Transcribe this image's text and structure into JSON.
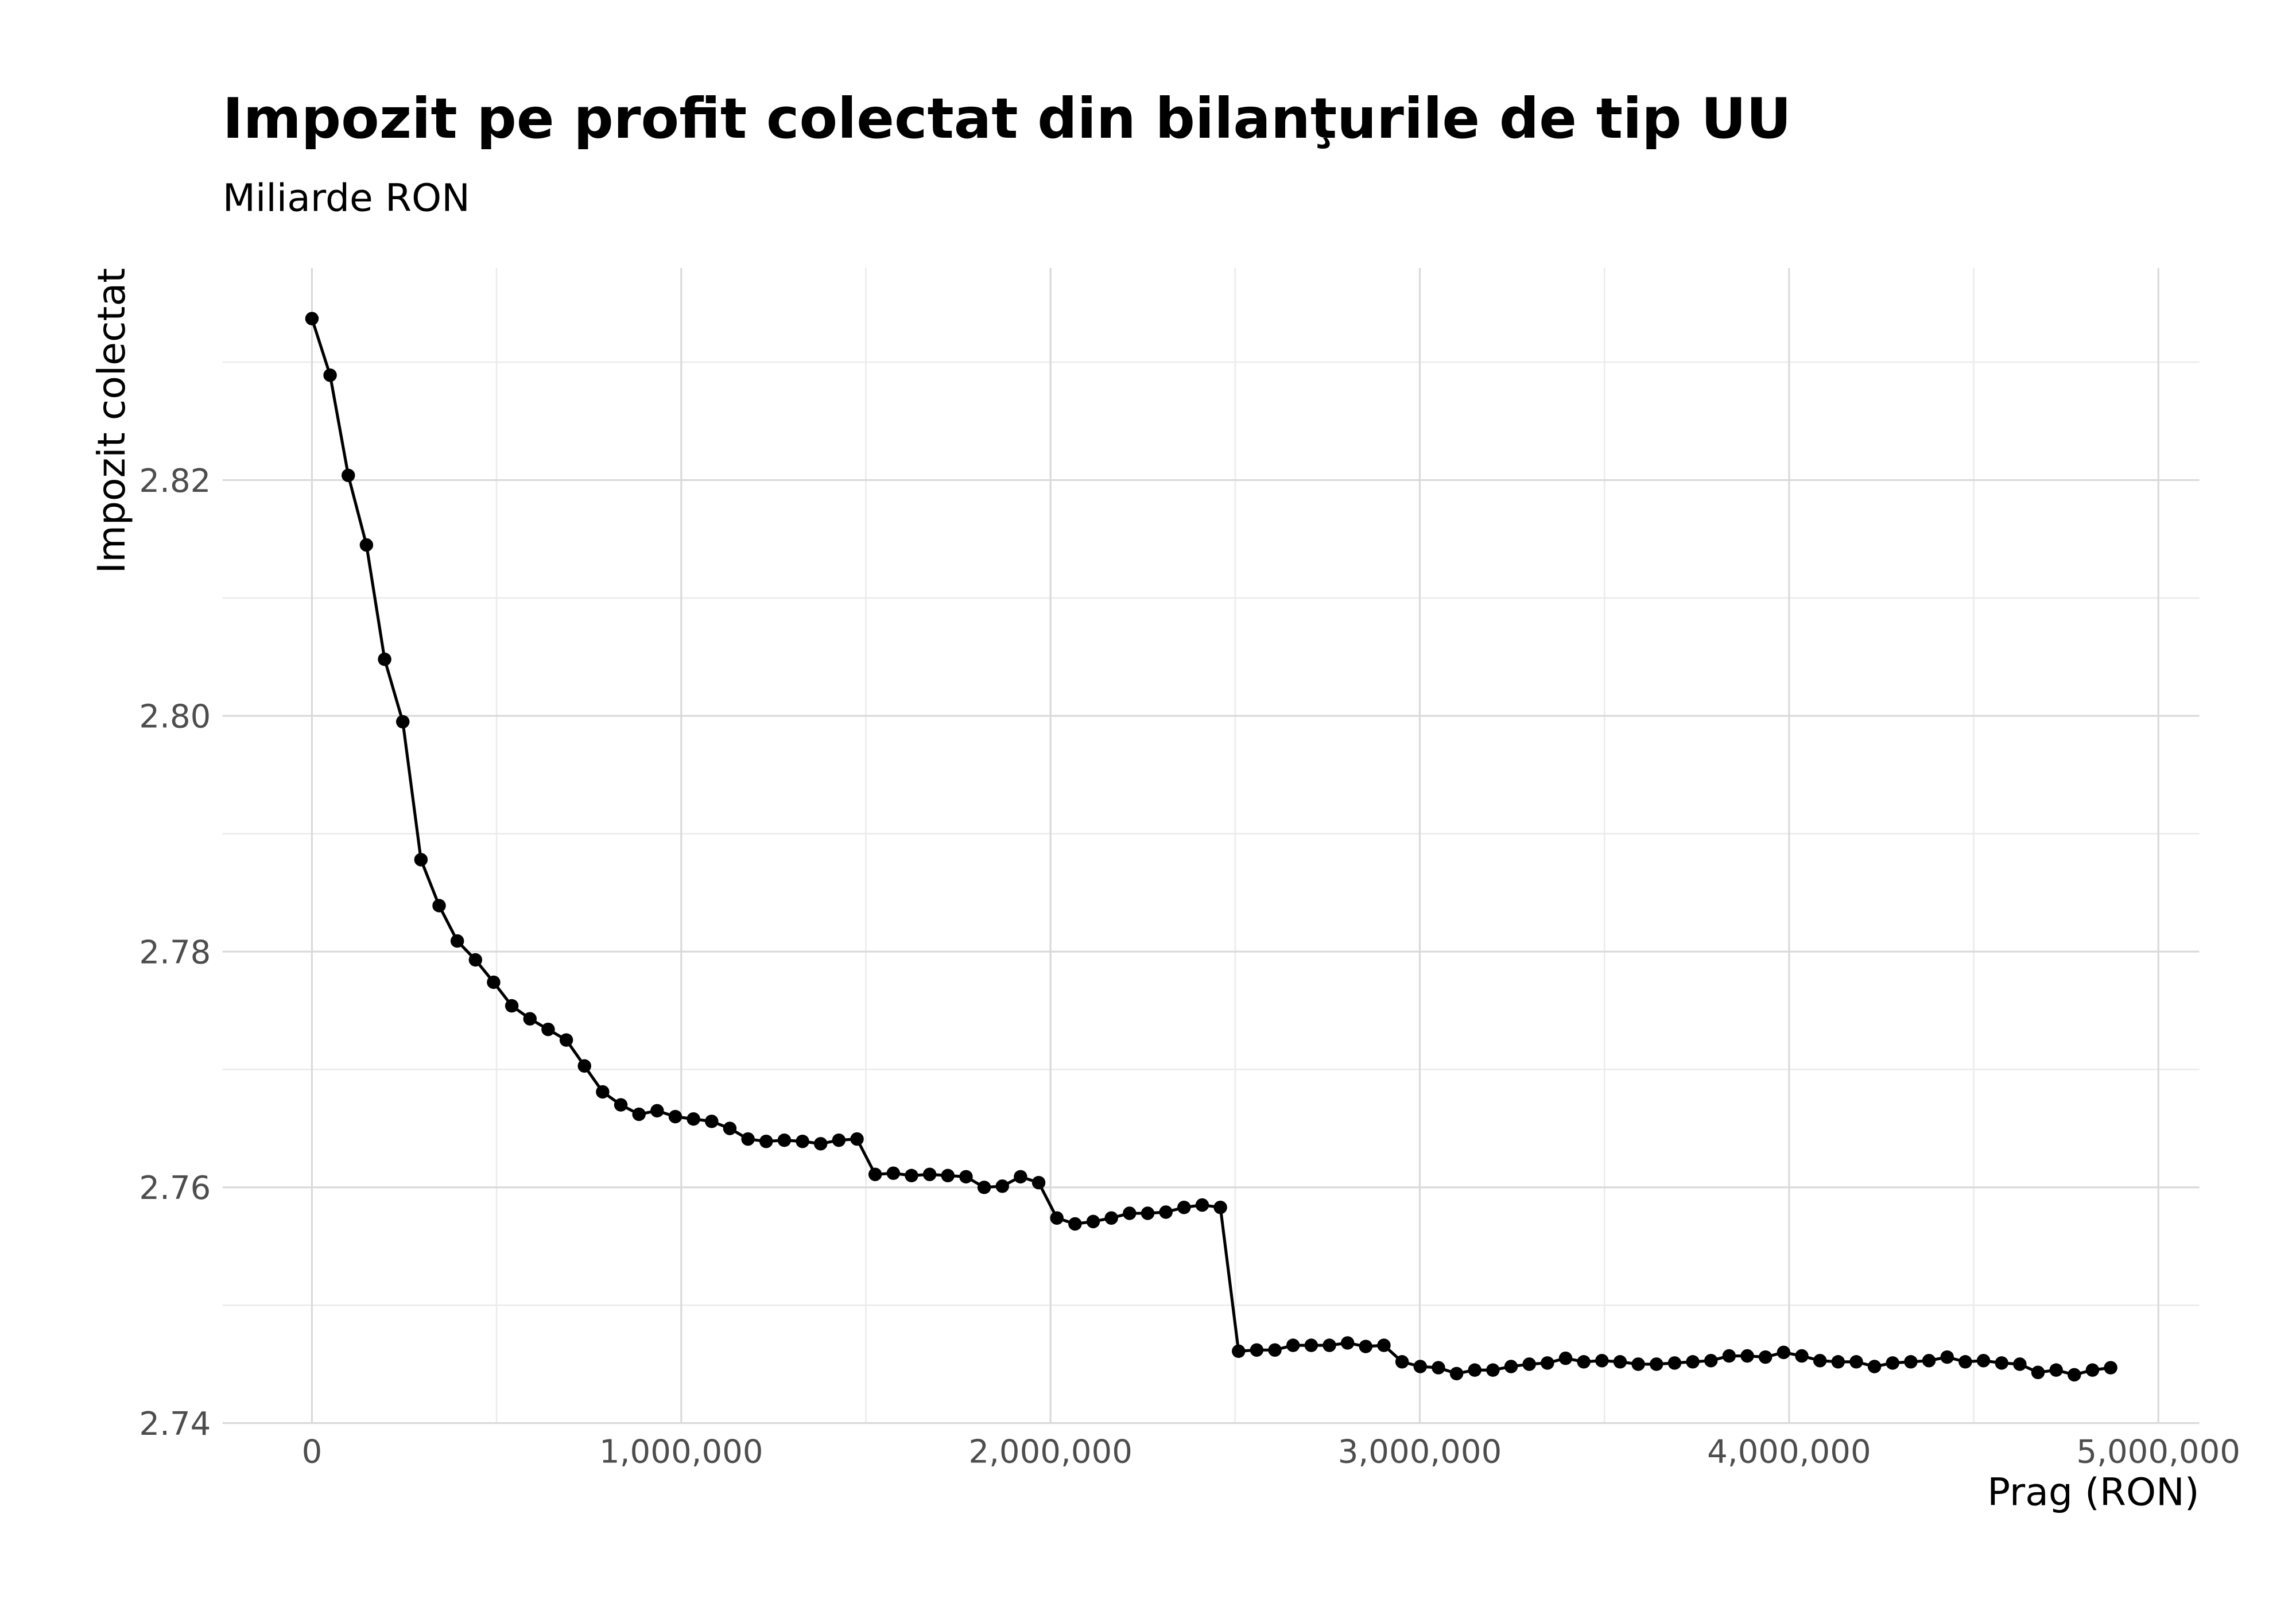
{
  "chart_data": {
    "type": "line",
    "title": "Impozit pe profit colectat din bilanţurile de tip UU",
    "subtitle": "Miliarde RON",
    "x_label": "Prag (RON)",
    "y_label": "Impozit colectat",
    "x": [
      0,
      49200,
      98400,
      147600,
      196800,
      246000,
      295200,
      344400,
      393600,
      442800,
      492000,
      541200,
      590400,
      639600,
      688800,
      738000,
      787200,
      836400,
      885600,
      934800,
      984000,
      1033200,
      1082400,
      1131600,
      1180800,
      1230000,
      1279200,
      1328400,
      1377600,
      1426800,
      1476000,
      1525200,
      1574400,
      1623600,
      1672800,
      1722000,
      1771200,
      1820400,
      1869600,
      1918800,
      1968000,
      2017200,
      2066400,
      2115600,
      2164800,
      2214000,
      2263200,
      2312400,
      2361600,
      2410800,
      2460000,
      2509200,
      2558400,
      2607600,
      2656800,
      2706000,
      2755200,
      2804400,
      2853600,
      2902800,
      2952000,
      3001200,
      3050400,
      3099600,
      3148800,
      3198000,
      3247200,
      3296400,
      3345600,
      3394800,
      3444000,
      3493200,
      3542400,
      3591600,
      3640800,
      3690000,
      3739200,
      3788400,
      3837600,
      3886800,
      3936000,
      3985200,
      4034400,
      4083600,
      4132800,
      4182000,
      4231200,
      4280400,
      4329600,
      4378800,
      4428000,
      4477200,
      4526400,
      4575600,
      4624800,
      4674000,
      4723200,
      4772400,
      4821600,
      4870800
    ],
    "series": [
      {
        "name": "Impozit colectat",
        "color": "#000000",
        "values": [
          2.8337,
          2.8289,
          2.8204,
          2.8145,
          2.8048,
          2.7995,
          2.7878,
          2.7839,
          2.7809,
          2.7793,
          2.7774,
          2.7754,
          2.7743,
          2.7734,
          2.7725,
          2.7703,
          2.7681,
          2.767,
          2.7662,
          2.7665,
          2.766,
          2.7658,
          2.7656,
          2.765,
          2.7641,
          2.7639,
          2.764,
          2.7639,
          2.7637,
          2.764,
          2.7641,
          2.7611,
          2.7612,
          2.761,
          2.7611,
          2.761,
          2.7609,
          2.76,
          2.7601,
          2.7609,
          2.7604,
          2.7574,
          2.7569,
          2.7571,
          2.7574,
          2.7578,
          2.7578,
          2.7579,
          2.7583,
          2.7585,
          2.7583,
          2.7461,
          2.7462,
          2.7462,
          2.7466,
          2.7466,
          2.7466,
          2.7468,
          2.7465,
          2.7466,
          2.7452,
          2.7448,
          2.7447,
          2.7442,
          2.7445,
          2.7445,
          2.7448,
          2.745,
          2.7451,
          2.7455,
          2.7452,
          2.7453,
          2.7452,
          2.745,
          2.745,
          2.7451,
          2.7452,
          2.7453,
          2.7457,
          2.7457,
          2.7456,
          2.746,
          2.7457,
          2.7453,
          2.7452,
          2.7452,
          2.7448,
          2.7451,
          2.7452,
          2.7453,
          2.7456,
          2.7452,
          2.7453,
          2.7451,
          2.745,
          2.7443,
          2.7445,
          2.7441,
          2.7445,
          2.7447
        ]
      }
    ],
    "xlim": [
      -242000,
      5111000
    ],
    "ylim": [
      2.74,
      2.838
    ],
    "xticks": [
      0,
      {
        "value": 1000000,
        "label": "1,000,000"
      },
      {
        "value": 2000000,
        "label": "2,000,000"
      },
      {
        "value": 3000000,
        "label": "3,000,000"
      },
      {
        "value": 4000000,
        "label": "4,000,000"
      },
      {
        "value": 5000000,
        "label": "5,000,000"
      }
    ],
    "yticks": [
      2.74,
      2.76,
      2.78,
      {
        "value": 2.8,
        "label": "2.80"
      },
      2.82
    ],
    "xminor_ticks": [
      500000,
      1500000,
      2500000,
      3500000,
      4500000
    ],
    "yminor_ticks": [
      2.75,
      2.77,
      2.79,
      2.81,
      2.83
    ],
    "grid": true,
    "markers": true
  }
}
